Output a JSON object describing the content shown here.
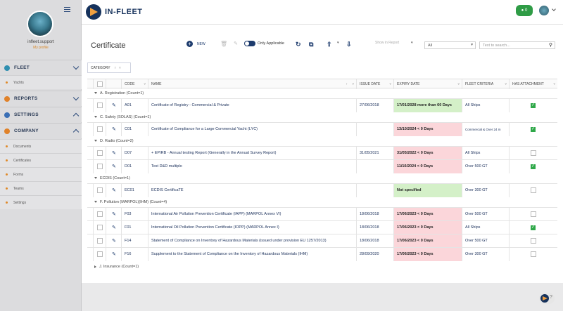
{
  "app": {
    "name": "IN-FLEET"
  },
  "user": {
    "name": "infleet.support",
    "profile_link": "My profile"
  },
  "header": {
    "notif_count": "0"
  },
  "nav": {
    "fleet": "FLEET",
    "fleet_items": [
      "Yachts"
    ],
    "reports": "REPORTS",
    "settings": "SETTINGS",
    "company": "COMPANY",
    "company_items": [
      "Documents",
      "Certificates",
      "Forms",
      "Teams",
      "Settings"
    ]
  },
  "page": {
    "title": "Certificate"
  },
  "toolbar": {
    "new_label": "NEW",
    "only_applicable": "Only Applicable",
    "show_in_report": "Show in Report",
    "filter_value": "All",
    "search_placeholder": "Text to search..."
  },
  "grouping": {
    "label": "CATEGORY"
  },
  "columns": {
    "code": "CODE",
    "name": "NAME",
    "issue": "ISSUE DATE",
    "expiry": "EXPIRY DATE",
    "fleet": "FLEET CRITERIA",
    "attach": "HAS ATTACHMENT"
  },
  "groups": [
    {
      "label": "A. Registration (Count=1)"
    },
    {
      "label": "C. Safety (SOLAS) (Count=1)"
    },
    {
      "label": "D. Radio (Count=2)"
    },
    {
      "label": "ECDIS (Count=1)"
    },
    {
      "label": "F. Pollution (MARPOL)(IHM) (Count=4)"
    },
    {
      "label": "J. Insurance (Count=1)"
    }
  ],
  "rows": [
    {
      "code": "A01",
      "name": "Certificate of Registry - Commercial & Private",
      "issue": "27/06/2018",
      "expiry": "17/01/2028 more than 60 Days",
      "status": "ok",
      "fleet": "All Ships",
      "attach": true
    },
    {
      "code": "C01",
      "name": "Certificate of Compliance for a Large Commercial Yacht (LYC)",
      "issue": "",
      "expiry": "13/10/2024 < 0 Days",
      "status": "expired",
      "fleet": "Commercial & Over 24 m",
      "attach": true
    },
    {
      "code": "D07",
      "name": "+ EPIRB - Annual testing Report (Generally in the Annual Survey Report)",
      "issue": "31/05/2021",
      "expiry": "31/05/2022 < 0 Days",
      "status": "expired",
      "fleet": "All Ships",
      "attach": false
    },
    {
      "code": "D01",
      "name": "Test D&D multiplo",
      "issue": "",
      "expiry": "11/10/2024 < 0 Days",
      "status": "expired",
      "fleet": "Over 500 GT",
      "attach": true
    },
    {
      "code": "EC01",
      "name": "ECDIS CertificaTE",
      "issue": "",
      "expiry": "Not specified",
      "status": "ok",
      "fleet": "Over 300 GT",
      "attach": false
    },
    {
      "code": "F03",
      "name": "International Air Pollution Prevention Certificate (IAPP) (MARPOL Annex VI)",
      "issue": "18/06/2018",
      "expiry": "17/06/2023 < 0 Days",
      "status": "expired",
      "fleet": "Over 500 GT",
      "attach": false
    },
    {
      "code": "F01",
      "name": "International Oil Pollution Prevention Certificate (IOPP) (MARPOL Annex I)",
      "issue": "18/06/2018",
      "expiry": "17/06/2023 < 0 Days",
      "status": "expired",
      "fleet": "All Ships",
      "attach": true
    },
    {
      "code": "F14",
      "name": "Statement of Compliance on Inventory of Hazardous Materials (issued under provision EU 1257/2013)",
      "issue": "18/06/2018",
      "expiry": "17/06/2023 < 0 Days",
      "status": "expired",
      "fleet": "Over 500 GT",
      "attach": false
    },
    {
      "code": "F16",
      "name": "Supplement to the Statement of Compliance on the Inventory of Hazardous Materials (IHM)",
      "issue": "28/09/2020",
      "expiry": "17/06/2023 < 0 Days",
      "status": "expired",
      "fleet": "Over 300 GT",
      "attach": false
    }
  ],
  "colors": {
    "brand": "#16325c",
    "accent": "#f0a040",
    "expired_bg": "#fbd6da",
    "ok_bg": "#d4f0c8",
    "check": "#2fa849"
  }
}
